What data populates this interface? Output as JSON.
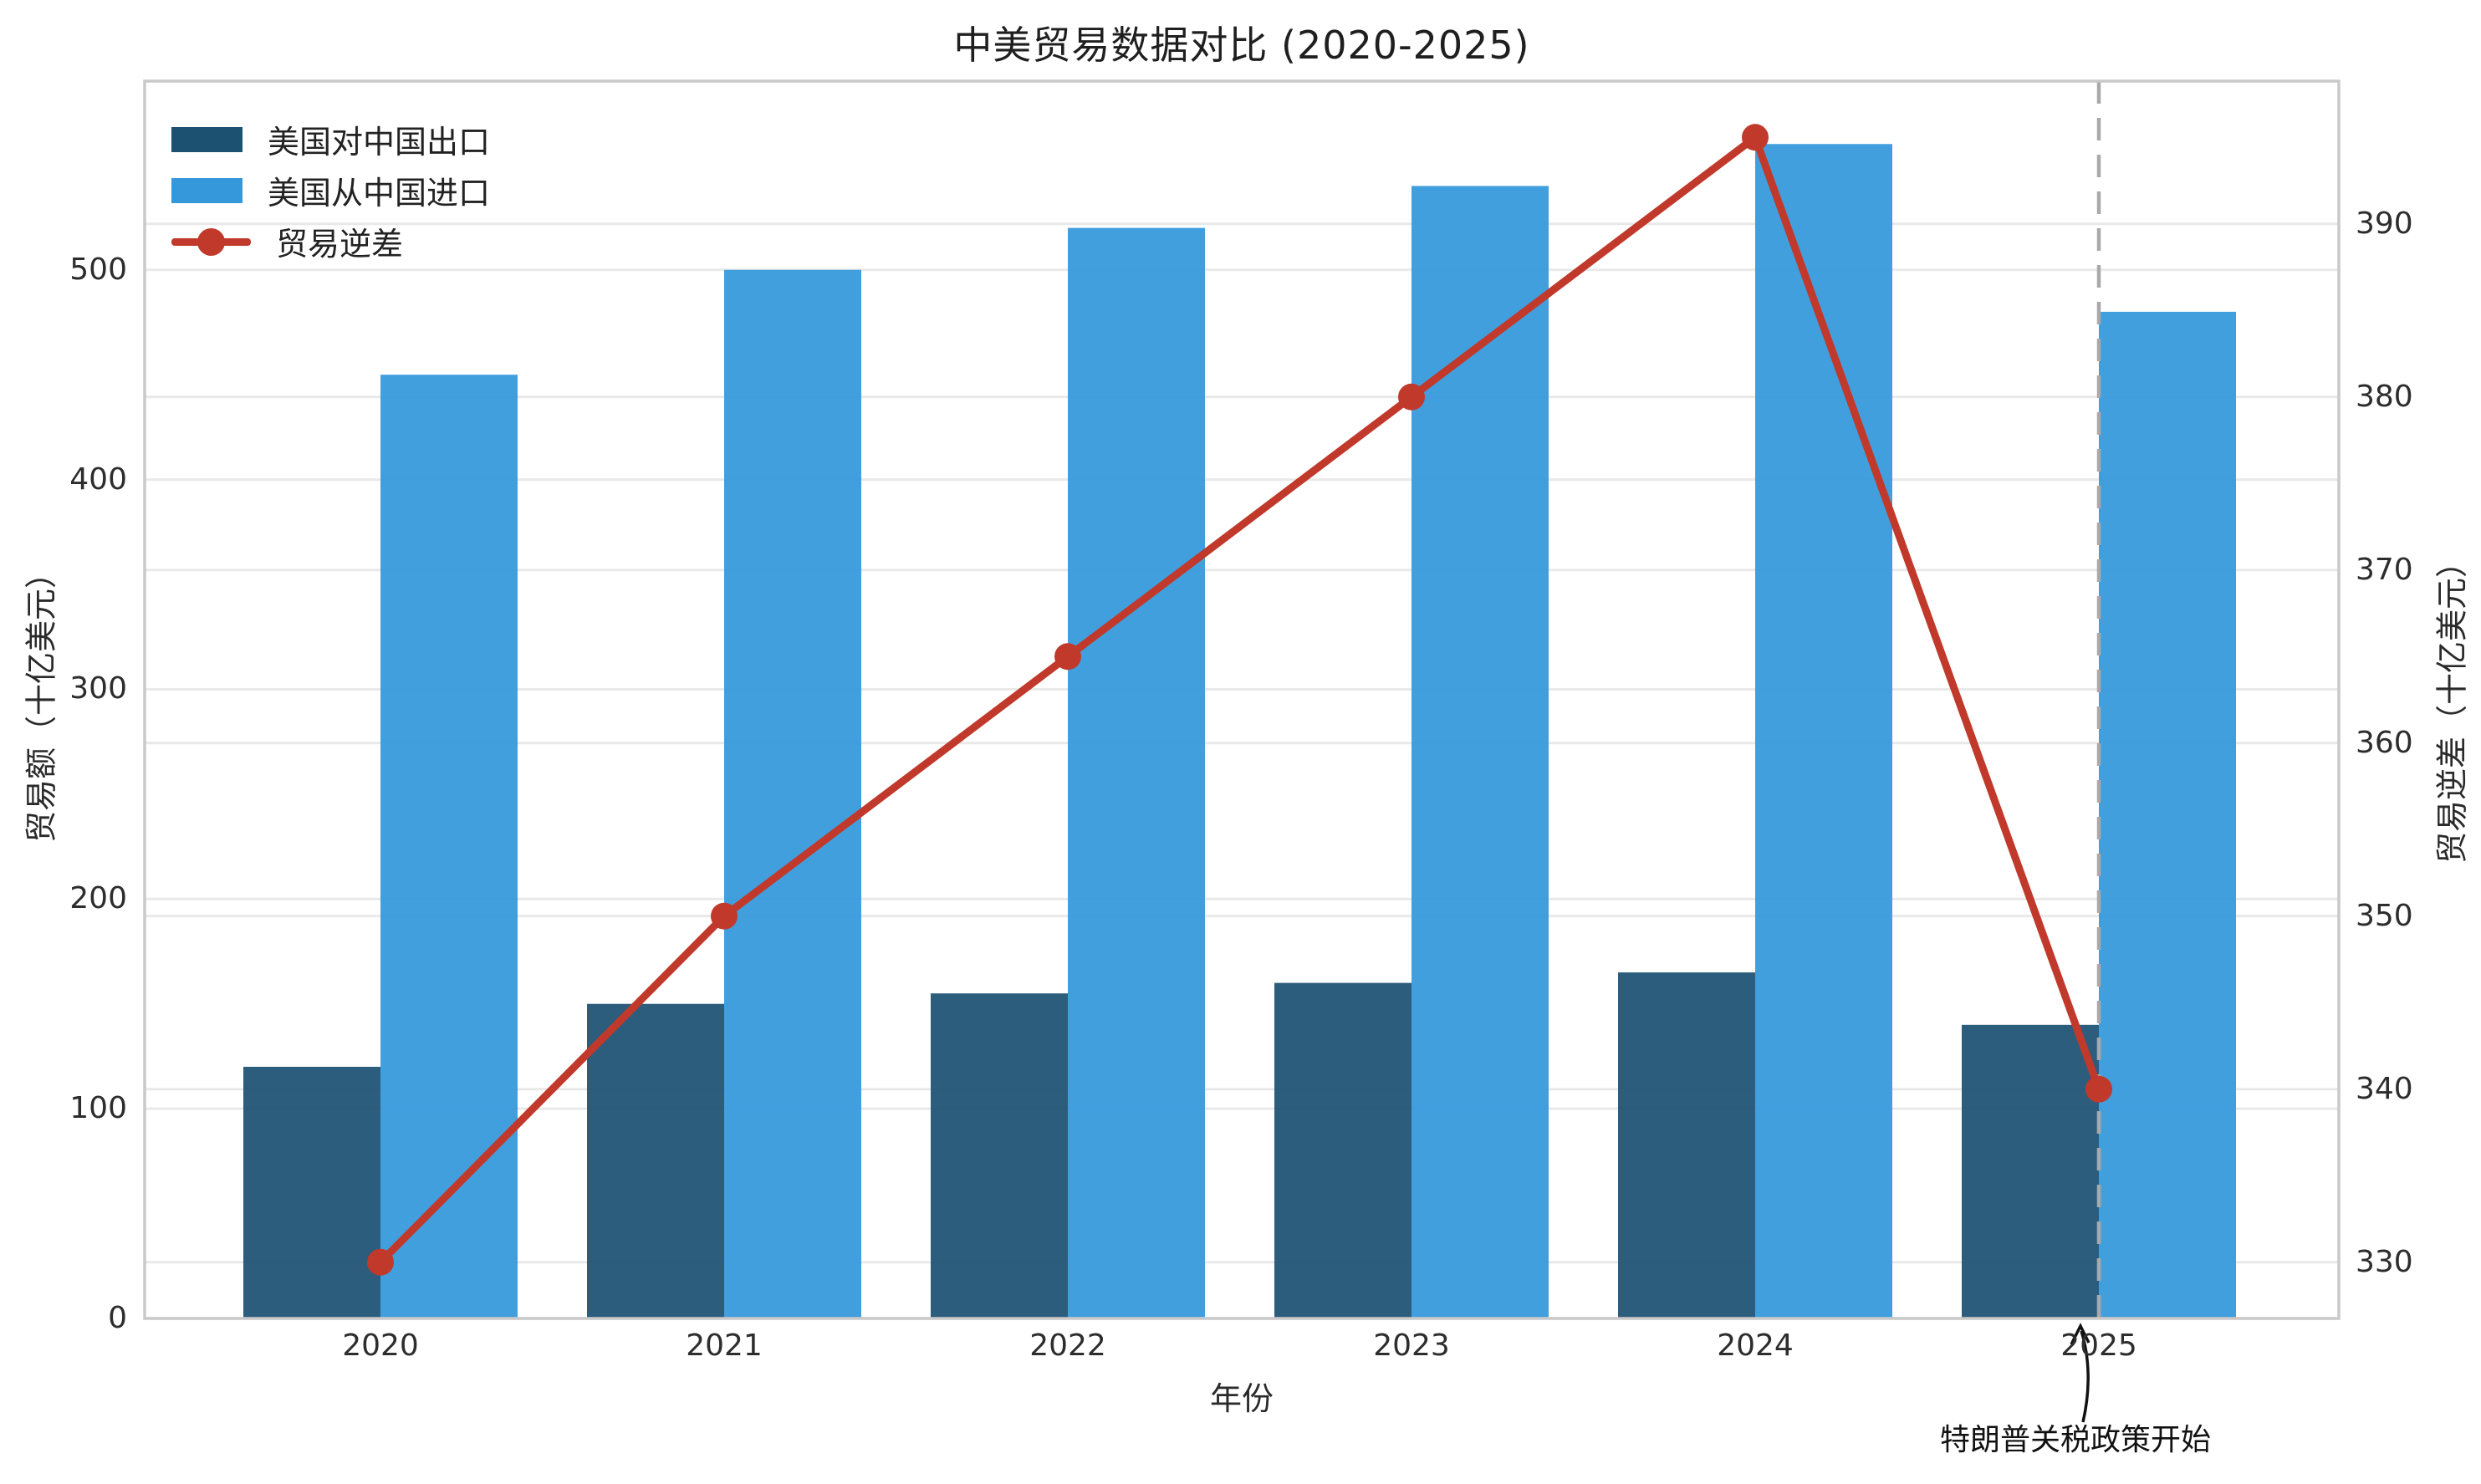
{
  "chart_data": {
    "type": "bar",
    "title": "中美贸易数据对比 (2020-2025)",
    "xlabel": "年份",
    "ylabel_left": "贸易额（十亿美元）",
    "ylabel_right": "贸易逆差（十亿美元）",
    "categories": [
      "2020",
      "2021",
      "2022",
      "2023",
      "2024",
      "2025"
    ],
    "series": [
      {
        "name": "美国对中国出口",
        "type": "bar",
        "axis": "left",
        "color": "#1c5172",
        "values": [
          120,
          150,
          155,
          160,
          165,
          140
        ]
      },
      {
        "name": "美国从中国进口",
        "type": "bar",
        "axis": "left",
        "color": "#3498db",
        "values": [
          450,
          500,
          520,
          540,
          560,
          480
        ]
      },
      {
        "name": "贸易逆差",
        "type": "line",
        "axis": "right",
        "color": "#c0392b",
        "values": [
          330,
          350,
          365,
          380,
          395,
          340
        ]
      }
    ],
    "ylim_left": [
      0,
      590
    ],
    "yticks_left": [
      0,
      100,
      200,
      300,
      400,
      500
    ],
    "ylim_right": [
      326.75,
      398.25
    ],
    "yticks_right": [
      330,
      340,
      350,
      360,
      370,
      380,
      390
    ],
    "grid": true,
    "legend_position": "upper left",
    "vline": {
      "category": "2025",
      "style": "dashed",
      "color": "#a9a9a9"
    },
    "annotation": {
      "text": "特朗普关税政策开始",
      "target_category": "2025"
    },
    "colors": {
      "export_bar": "#1c5172",
      "import_bar": "#3498db",
      "deficit_line": "#c0392b",
      "gridline": "#e9e9e9",
      "spine": "#c9c9c9",
      "dashed_vline": "#a9a9a9",
      "text": "#2a2a2a"
    }
  }
}
